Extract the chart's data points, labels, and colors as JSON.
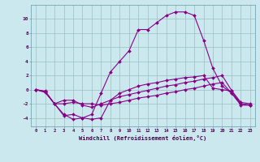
{
  "xlabel": "Windchill (Refroidissement éolien,°C)",
  "bg_color": "#cce8ef",
  "grid_color": "#9bbfbf",
  "line_color": "#880088",
  "xlim": [
    -0.5,
    23.5
  ],
  "ylim": [
    -5.2,
    12.0
  ],
  "yticks": [
    -4,
    -2,
    0,
    2,
    4,
    6,
    8,
    10
  ],
  "xticks": [
    0,
    1,
    2,
    3,
    4,
    5,
    6,
    7,
    8,
    9,
    10,
    11,
    12,
    13,
    14,
    15,
    16,
    17,
    18,
    19,
    20,
    21,
    22,
    23
  ],
  "series": [
    {
      "x": [
        0,
        1,
        2,
        3,
        4,
        5,
        6,
        7,
        8,
        9,
        10,
        11,
        12,
        13,
        14,
        15,
        16,
        17,
        18,
        19,
        20,
        21,
        22,
        23
      ],
      "y": [
        0.0,
        -0.3,
        -2.0,
        -3.7,
        -3.5,
        -4.0,
        -3.5,
        -0.5,
        2.5,
        4.0,
        5.5,
        8.5,
        8.5,
        9.5,
        10.5,
        11.0,
        11.0,
        10.5,
        7.0,
        3.0,
        0.5,
        -0.5,
        -2.2,
        -2.2
      ]
    },
    {
      "x": [
        0,
        1,
        2,
        3,
        4,
        5,
        6,
        7,
        8,
        9,
        10,
        11,
        12,
        13,
        14,
        15,
        16,
        17,
        18,
        19,
        20,
        21,
        22,
        23
      ],
      "y": [
        0.0,
        -0.4,
        -2.0,
        -3.5,
        -4.2,
        -4.0,
        -4.2,
        -4.0,
        -1.5,
        -0.5,
        0.0,
        0.5,
        0.8,
        1.0,
        1.3,
        1.5,
        1.7,
        1.8,
        2.0,
        0.2,
        0.0,
        -0.2,
        -2.0,
        -2.2
      ]
    },
    {
      "x": [
        0,
        1,
        2,
        3,
        4,
        5,
        6,
        7,
        8,
        9,
        10,
        11,
        12,
        13,
        14,
        15,
        16,
        17,
        18,
        19,
        20,
        21,
        22,
        23
      ],
      "y": [
        0.0,
        -0.3,
        -2.0,
        -1.5,
        -1.5,
        -2.2,
        -2.5,
        -2.0,
        -1.5,
        -1.0,
        -0.7,
        -0.4,
        -0.1,
        0.2,
        0.5,
        0.7,
        1.0,
        1.2,
        1.5,
        1.7,
        2.0,
        -0.1,
        -1.8,
        -2.0
      ]
    },
    {
      "x": [
        0,
        1,
        2,
        3,
        4,
        5,
        6,
        7,
        8,
        9,
        10,
        11,
        12,
        13,
        14,
        15,
        16,
        17,
        18,
        19,
        20,
        21,
        22,
        23
      ],
      "y": [
        0.0,
        -0.2,
        -2.0,
        -2.0,
        -1.8,
        -2.0,
        -2.0,
        -2.2,
        -2.0,
        -1.8,
        -1.5,
        -1.2,
        -1.0,
        -0.8,
        -0.5,
        -0.3,
        0.0,
        0.2,
        0.5,
        0.8,
        1.0,
        -0.5,
        -2.0,
        -2.2
      ]
    }
  ]
}
